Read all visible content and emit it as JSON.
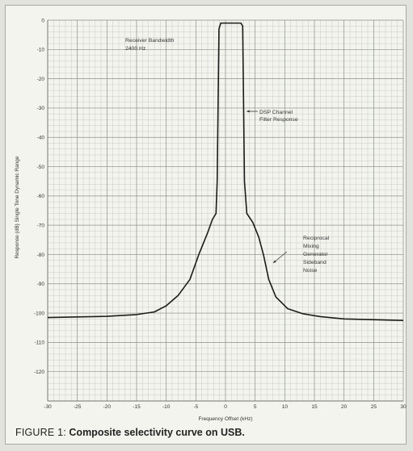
{
  "caption": {
    "lead": "FIGURE 1:",
    "text": "Composite selectivity curve on USB."
  },
  "colors": {
    "grid": "#b9bcb5",
    "curve": "#1c1c1c",
    "text": "#333333",
    "paper": "#f4f4ef"
  },
  "chart_data": {
    "type": "line",
    "title": "",
    "xlabel": "Frequency Offset (kHz)",
    "ylabel": "Response (dB) Single Tone Dynamic Range",
    "xlim": [
      -30,
      30
    ],
    "ylim": [
      -130,
      0
    ],
    "x_ticks": [
      -30,
      -25,
      -20,
      -15,
      -10,
      -5,
      0,
      5,
      10,
      15,
      20,
      25,
      30
    ],
    "y_ticks": [
      0,
      -10,
      -20,
      -30,
      -40,
      -50,
      -60,
      -70,
      -80,
      -90,
      -100,
      -110,
      -120
    ],
    "grid": true,
    "annotations": [
      {
        "lines": [
          "Receiver Bandwidth",
          "2400 Hz"
        ]
      },
      {
        "lines": [
          "DSP Channel",
          "Filter Response"
        ],
        "arrow": true
      },
      {
        "lines": [
          "Reciprocal",
          "Mixing",
          "Generator",
          "Sideband",
          "Noise"
        ],
        "arrow": true
      }
    ],
    "series": [
      {
        "x": [
          -30,
          -20,
          -15,
          -12,
          -10,
          -8,
          -6,
          -4.5,
          -3,
          -2.2,
          -1.6,
          -1.4,
          -1.1,
          -0.8,
          1.2,
          2.6,
          2.9,
          3.2,
          3.6,
          4.6,
          5.6,
          6.4,
          7.3,
          8.5,
          10.5,
          13,
          16,
          20,
          30
        ],
        "y": [
          -101.5,
          -101.1,
          -100.5,
          -99.6,
          -97.5,
          -94,
          -88.5,
          -80,
          -72.5,
          -68,
          -66,
          -55,
          -3,
          -1,
          -1,
          -1,
          -2,
          -55,
          -66,
          -69,
          -74,
          -80,
          -88.5,
          -94.5,
          -98.5,
          -100.2,
          -101.2,
          -102,
          -102.5
        ]
      }
    ]
  }
}
